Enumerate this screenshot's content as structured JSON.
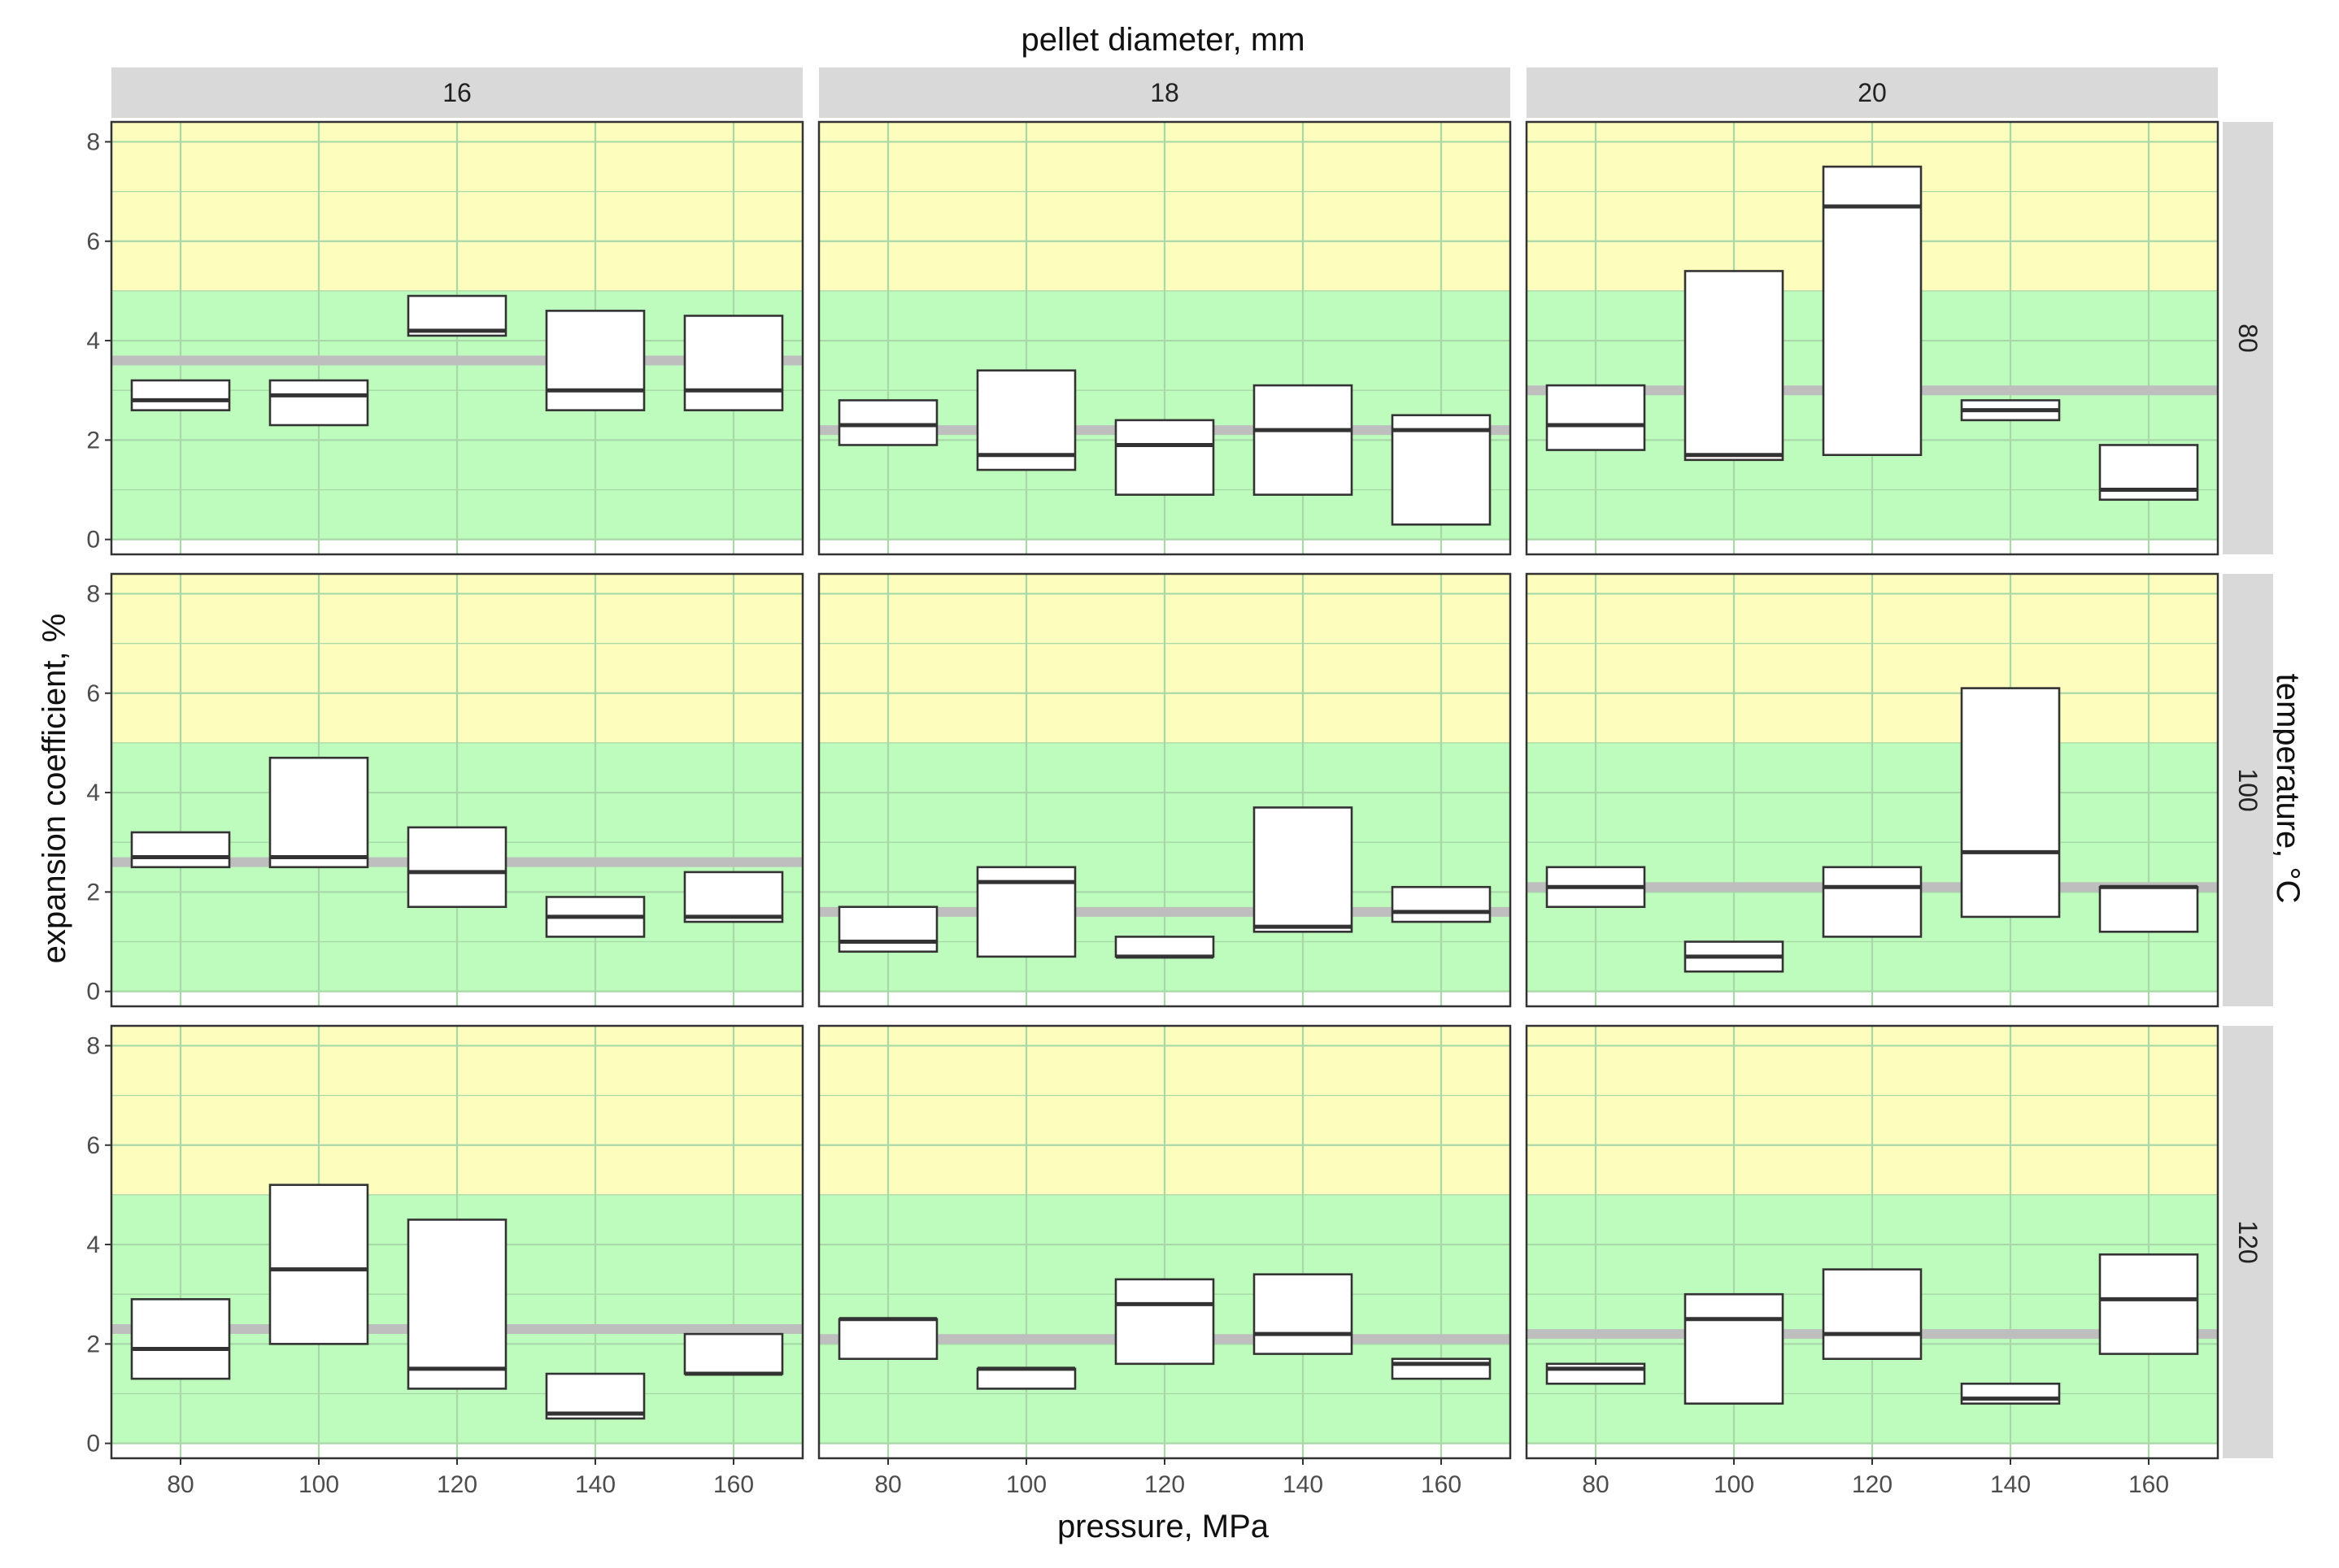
{
  "chart_data": {
    "type": "box",
    "title": "pellet diameter, mm",
    "xlabel": "pressure, MPa",
    "ylabel": "expansion coefficient, %",
    "row_label": "temperature, °C",
    "columns": [
      "16",
      "18",
      "20"
    ],
    "rows": [
      "80",
      "100",
      "120"
    ],
    "categories": [
      80,
      100,
      120,
      140,
      160
    ],
    "ylim": [
      -0.3,
      8.4
    ],
    "yticks": [
      0,
      2,
      4,
      6,
      8
    ],
    "bands": [
      {
        "name": "green",
        "from": 0,
        "to": 5,
        "color": "#bdfcbd"
      },
      {
        "name": "yellow",
        "from": 5,
        "to": 8.4,
        "color": "#fdfdbd"
      }
    ],
    "colors": {
      "box_fill": "#ffffff",
      "box_stroke": "#333333",
      "median": "#333333",
      "mean_line": "#bebebe",
      "grid": "#a8d8a8",
      "strip": "#d9d9d9",
      "frame": "#333333"
    },
    "panels": [
      {
        "temperature": "80",
        "diameter": "16",
        "mean": 3.6,
        "boxes": [
          {
            "x": 80,
            "low": 2.6,
            "median": 2.8,
            "high": 3.2
          },
          {
            "x": 100,
            "low": 2.3,
            "median": 2.9,
            "high": 3.2
          },
          {
            "x": 120,
            "low": 4.1,
            "median": 4.2,
            "high": 4.9
          },
          {
            "x": 140,
            "low": 2.6,
            "median": 3.0,
            "high": 4.6
          },
          {
            "x": 160,
            "low": 2.6,
            "median": 3.0,
            "high": 4.5
          }
        ]
      },
      {
        "temperature": "80",
        "diameter": "18",
        "mean": 2.2,
        "boxes": [
          {
            "x": 80,
            "low": 1.9,
            "median": 2.3,
            "high": 2.8
          },
          {
            "x": 100,
            "low": 1.4,
            "median": 1.7,
            "high": 3.4
          },
          {
            "x": 120,
            "low": 0.9,
            "median": 1.9,
            "high": 2.4
          },
          {
            "x": 140,
            "low": 0.9,
            "median": 2.2,
            "high": 3.1
          },
          {
            "x": 160,
            "low": 0.3,
            "median": 2.2,
            "high": 2.5
          }
        ]
      },
      {
        "temperature": "80",
        "diameter": "20",
        "mean": 3.0,
        "boxes": [
          {
            "x": 80,
            "low": 1.8,
            "median": 2.3,
            "high": 3.1
          },
          {
            "x": 100,
            "low": 1.6,
            "median": 1.7,
            "high": 5.4
          },
          {
            "x": 120,
            "low": 1.7,
            "median": 6.7,
            "high": 7.5
          },
          {
            "x": 140,
            "low": 2.4,
            "median": 2.6,
            "high": 2.8
          },
          {
            "x": 160,
            "low": 0.8,
            "median": 1.0,
            "high": 1.9
          }
        ]
      },
      {
        "temperature": "100",
        "diameter": "16",
        "mean": 2.6,
        "boxes": [
          {
            "x": 80,
            "low": 2.5,
            "median": 2.7,
            "high": 3.2
          },
          {
            "x": 100,
            "low": 2.5,
            "median": 2.7,
            "high": 4.7
          },
          {
            "x": 120,
            "low": 1.7,
            "median": 2.4,
            "high": 3.3
          },
          {
            "x": 140,
            "low": 1.1,
            "median": 1.5,
            "high": 1.9
          },
          {
            "x": 160,
            "low": 1.4,
            "median": 1.5,
            "high": 2.4
          }
        ]
      },
      {
        "temperature": "100",
        "diameter": "18",
        "mean": 1.6,
        "boxes": [
          {
            "x": 80,
            "low": 0.8,
            "median": 1.0,
            "high": 1.7
          },
          {
            "x": 100,
            "low": 0.7,
            "median": 2.2,
            "high": 2.5
          },
          {
            "x": 120,
            "low": 0.7,
            "median": 0.7,
            "high": 1.1
          },
          {
            "x": 140,
            "low": 1.2,
            "median": 1.3,
            "high": 3.7
          },
          {
            "x": 160,
            "low": 1.4,
            "median": 1.6,
            "high": 2.1
          }
        ]
      },
      {
        "temperature": "100",
        "diameter": "20",
        "mean": 2.1,
        "boxes": [
          {
            "x": 80,
            "low": 1.7,
            "median": 2.1,
            "high": 2.5
          },
          {
            "x": 100,
            "low": 0.4,
            "median": 0.7,
            "high": 1.0
          },
          {
            "x": 120,
            "low": 1.1,
            "median": 2.1,
            "high": 2.5
          },
          {
            "x": 140,
            "low": 1.5,
            "median": 2.8,
            "high": 6.1
          },
          {
            "x": 160,
            "low": 1.2,
            "median": 2.1,
            "high": 2.1
          }
        ]
      },
      {
        "temperature": "120",
        "diameter": "16",
        "mean": 2.3,
        "boxes": [
          {
            "x": 80,
            "low": 1.3,
            "median": 1.9,
            "high": 2.9
          },
          {
            "x": 100,
            "low": 2.0,
            "median": 3.5,
            "high": 5.2
          },
          {
            "x": 120,
            "low": 1.1,
            "median": 1.5,
            "high": 4.5
          },
          {
            "x": 140,
            "low": 0.5,
            "median": 0.6,
            "high": 1.4
          },
          {
            "x": 160,
            "low": 1.4,
            "median": 1.4,
            "high": 2.2
          }
        ]
      },
      {
        "temperature": "120",
        "diameter": "18",
        "mean": 2.1,
        "boxes": [
          {
            "x": 80,
            "low": 1.7,
            "median": 2.5,
            "high": 2.5
          },
          {
            "x": 100,
            "low": 1.1,
            "median": 1.5,
            "high": 1.5
          },
          {
            "x": 120,
            "low": 1.6,
            "median": 2.8,
            "high": 3.3
          },
          {
            "x": 140,
            "low": 1.8,
            "median": 2.2,
            "high": 3.4
          },
          {
            "x": 160,
            "low": 1.3,
            "median": 1.6,
            "high": 1.7
          }
        ]
      },
      {
        "temperature": "120",
        "diameter": "20",
        "mean": 2.2,
        "boxes": [
          {
            "x": 80,
            "low": 1.2,
            "median": 1.5,
            "high": 1.6
          },
          {
            "x": 100,
            "low": 0.8,
            "median": 2.5,
            "high": 3.0
          },
          {
            "x": 120,
            "low": 1.7,
            "median": 2.2,
            "high": 3.5
          },
          {
            "x": 140,
            "low": 0.8,
            "median": 0.9,
            "high": 1.2
          },
          {
            "x": 160,
            "low": 1.8,
            "median": 2.9,
            "high": 3.8
          }
        ]
      }
    ]
  }
}
